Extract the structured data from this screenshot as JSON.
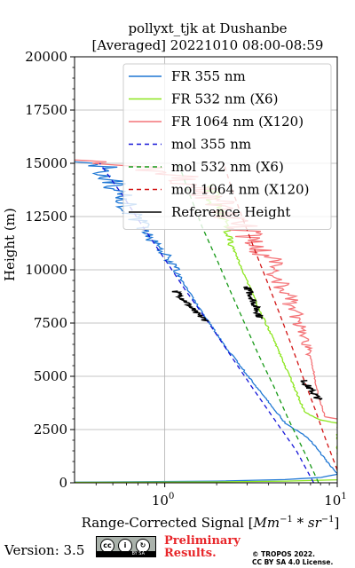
{
  "header": {
    "title_line1": "pollyxt_tjk at Dushanbe",
    "title_line2": "[Averaged] 20221010 08:00-08:59"
  },
  "footer": {
    "version": "Version: 3.5",
    "license_badge_text": "BY SA",
    "preliminary_line1": "Preliminary",
    "preliminary_line2": "Results.",
    "copyright_line1": "© TROPOS 2022.",
    "copyright_line2": "CC BY SA 4.0 License."
  },
  "chart_data": {
    "type": "line",
    "title": "pollyxt_tjk at Dushanbe [Averaged] 20221010 08:00-08:59",
    "xlabel": "Range-Corrected Signal [Mm^-1 * sr^-1]",
    "xlabel_main": "Range-Corrected Signal [",
    "xlabel_unit_a": "Mm",
    "xlabel_exp_a": "−1",
    "xlabel_mid": " * ",
    "xlabel_unit_b": "sr",
    "xlabel_exp_b": "−1",
    "xlabel_end": "]",
    "ylabel": "Height (m)",
    "xscale": "log",
    "xlim": [
      0.3,
      10
    ],
    "ylim": [
      0,
      20000
    ],
    "x_ticks": [
      {
        "value": 1,
        "base": "10",
        "exp": "0"
      },
      {
        "value": 10,
        "base": "10",
        "exp": "1"
      }
    ],
    "y_ticks": [
      0,
      2500,
      5000,
      7500,
      10000,
      12500,
      15000,
      17500,
      20000
    ],
    "y_tick_labels": [
      "0",
      "2500",
      "5000",
      "7500",
      "10000",
      "12500",
      "15000",
      "17500",
      "20000"
    ],
    "grid": true,
    "legend_position": "upper-right",
    "series": [
      {
        "name": "FR 355 nm",
        "color": "#1f77d4",
        "style": "solid",
        "noisy_above": 9500,
        "x": [
          0.3,
          2.0,
          5.0,
          8.0,
          10.0,
          6.8,
          5.0,
          3.4,
          2.2,
          1.5,
          1.05,
          0.75,
          0.55,
          0.42,
          0.3
        ],
        "y": [
          30,
          80,
          150,
          250,
          400,
          2100,
          2800,
          4500,
          6500,
          8500,
          10500,
          12000,
          13500,
          15000,
          15200
        ]
      },
      {
        "name": "FR 532 nm (X6)",
        "color": "#8ce61e",
        "style": "solid",
        "noisy_above": 11000,
        "x": [
          0.3,
          2.0,
          5.0,
          10.0,
          10.0,
          8.0,
          6.5,
          5.3,
          4.4,
          3.6,
          3.0,
          2.5,
          2.1,
          1.8
        ],
        "y": [
          20,
          40,
          80,
          140,
          2800,
          2950,
          3300,
          5000,
          6500,
          8000,
          9500,
          11000,
          12500,
          14000
        ]
      },
      {
        "name": "FR 1064 nm (X120)",
        "color": "#f47478",
        "style": "solid",
        "noisy_above": 6000,
        "x": [
          10.0,
          8.5,
          7.8,
          7.2,
          6.6,
          5.8,
          5.0,
          4.0,
          3.2,
          2.6,
          2.1,
          1.7,
          1.4,
          1.1,
          0.8,
          0.5,
          0.3
        ],
        "y": [
          3000,
          3100,
          4000,
          5500,
          6500,
          7800,
          9000,
          10500,
          11500,
          12300,
          13000,
          13500,
          14000,
          14500,
          14800,
          15000,
          15200
        ]
      },
      {
        "name": "mol 355 nm",
        "color": "#1414d8",
        "style": "dashed",
        "x": [
          7.3,
          5.8,
          4.3,
          3.2,
          2.4,
          1.8,
          1.33,
          1.0,
          0.75,
          0.57,
          0.42
        ],
        "y": [
          0,
          1500,
          3000,
          4500,
          6000,
          7500,
          9000,
          10500,
          12000,
          13500,
          15000
        ]
      },
      {
        "name": "mol 532 nm (X6)",
        "color": "#169916",
        "style": "dashed",
        "x": [
          7.8,
          6.4,
          5.2,
          4.3,
          3.5,
          2.9,
          2.4,
          2.0,
          1.65,
          1.4,
          1.2
        ],
        "y": [
          0,
          1500,
          3000,
          4500,
          6000,
          7500,
          9000,
          10500,
          12000,
          13500,
          15000
        ]
      },
      {
        "name": "mol 1064 nm (X120)",
        "color": "#d21414",
        "style": "dashed",
        "x": [
          10.0,
          8.6,
          7.4,
          6.3,
          5.4,
          4.6,
          3.9,
          3.3,
          2.8,
          2.4,
          2.2
        ],
        "y": [
          600,
          2000,
          3500,
          5000,
          6500,
          8000,
          9500,
          11000,
          12500,
          14000,
          15000
        ]
      },
      {
        "name": "Reference Height",
        "color": "#000000",
        "style": "solid",
        "noisy": true,
        "segments": [
          {
            "x": [
              1.15,
              1.3,
              1.5,
              1.75
            ],
            "y": [
              9000,
              8600,
              8000,
              7600
            ]
          },
          {
            "x": [
              3.0,
              3.2,
              3.4,
              3.6
            ],
            "y": [
              9200,
              8700,
              8200,
              7700
            ]
          },
          {
            "x": [
              6.4,
              6.8,
              7.3,
              7.9
            ],
            "y": [
              4800,
              4500,
              4200,
              3900
            ]
          }
        ]
      }
    ]
  }
}
